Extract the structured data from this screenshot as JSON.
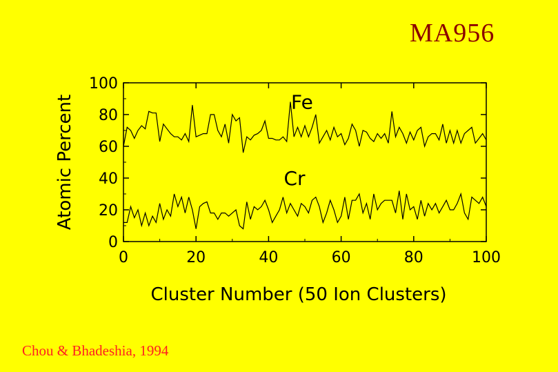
{
  "slide": {
    "course_code": "MA956",
    "credit": "Chou & Bhadeshia, 1994"
  },
  "colors": {
    "background": "#ffff00",
    "course_code": "#8b0000",
    "credit": "#ff2020",
    "lines": "#000000"
  },
  "chart_data": {
    "type": "line",
    "xlabel": "Cluster Number (50 Ion Clusters)",
    "ylabel": "Atomic Percent",
    "xlim": [
      0,
      100
    ],
    "ylim": [
      0,
      100
    ],
    "xticks": [
      0,
      20,
      40,
      60,
      80,
      100
    ],
    "yticks": [
      0,
      20,
      40,
      60,
      80,
      100
    ],
    "grid": false,
    "series": [
      {
        "name": "Fe",
        "x": [
          0,
          1,
          2,
          3,
          4,
          5,
          6,
          7,
          8,
          9,
          10,
          11,
          12,
          13,
          14,
          15,
          16,
          17,
          18,
          19,
          20,
          21,
          22,
          23,
          24,
          25,
          26,
          27,
          28,
          29,
          30,
          31,
          32,
          33,
          34,
          35,
          36,
          37,
          38,
          39,
          40,
          41,
          42,
          43,
          44,
          45,
          46,
          47,
          48,
          49,
          50,
          51,
          52,
          53,
          54,
          55,
          56,
          57,
          58,
          59,
          60,
          61,
          62,
          63,
          64,
          65,
          66,
          67,
          68,
          69,
          70,
          71,
          72,
          73,
          74,
          75,
          76,
          77,
          78,
          79,
          80,
          81,
          82,
          83,
          84,
          85,
          86,
          87,
          88,
          89,
          90,
          91,
          92,
          93,
          94,
          95,
          96,
          97,
          98,
          99,
          100
        ],
        "values": [
          60,
          72,
          70,
          65,
          70,
          73,
          71,
          82,
          81,
          81,
          63,
          74,
          71,
          68,
          66,
          66,
          64,
          68,
          63,
          86,
          66,
          67,
          68,
          68,
          80,
          80,
          70,
          66,
          74,
          62,
          80,
          76,
          78,
          56,
          66,
          64,
          67,
          68,
          70,
          76,
          65,
          65,
          64,
          64,
          66,
          63,
          88,
          66,
          72,
          66,
          73,
          66,
          72,
          80,
          62,
          66,
          70,
          64,
          72,
          66,
          68,
          61,
          65,
          74,
          70,
          60,
          70,
          69,
          65,
          63,
          68,
          65,
          68,
          62,
          82,
          66,
          72,
          68,
          62,
          69,
          64,
          70,
          72,
          60,
          66,
          68,
          68,
          64,
          74,
          62,
          70,
          62,
          70,
          62,
          68,
          70,
          72,
          62,
          65,
          68,
          64
        ],
        "points_note": ""
      },
      {
        "name": "Cr",
        "x": [
          0,
          1,
          2,
          3,
          4,
          5,
          6,
          7,
          8,
          9,
          10,
          11,
          12,
          13,
          14,
          15,
          16,
          17,
          18,
          19,
          20,
          21,
          22,
          23,
          24,
          25,
          26,
          27,
          28,
          29,
          30,
          31,
          32,
          33,
          34,
          35,
          36,
          37,
          38,
          39,
          40,
          41,
          42,
          43,
          44,
          45,
          46,
          47,
          48,
          49,
          50,
          51,
          52,
          53,
          54,
          55,
          56,
          57,
          58,
          59,
          60,
          61,
          62,
          63,
          64,
          65,
          66,
          67,
          68,
          69,
          70,
          71,
          72,
          73,
          74,
          75,
          76,
          77,
          78,
          79,
          80,
          81,
          82,
          83,
          84,
          85,
          86,
          87,
          88,
          89,
          90,
          91,
          92,
          93,
          94,
          95,
          96,
          97,
          98,
          99,
          100
        ],
        "values": [
          12,
          12,
          22,
          15,
          20,
          10,
          18,
          10,
          16,
          12,
          24,
          14,
          20,
          16,
          30,
          22,
          28,
          18,
          28,
          20,
          8,
          22,
          24,
          25,
          18,
          18,
          14,
          18,
          18,
          16,
          18,
          20,
          10,
          8,
          25,
          14,
          22,
          20,
          22,
          26,
          20,
          12,
          16,
          20,
          28,
          18,
          24,
          20,
          16,
          24,
          22,
          18,
          26,
          28,
          22,
          12,
          18,
          26,
          20,
          12,
          16,
          28,
          14,
          26,
          26,
          30,
          18,
          24,
          14,
          30,
          20,
          24,
          26,
          26,
          26,
          18,
          32,
          14,
          30,
          20,
          22,
          14,
          26,
          16,
          24,
          20,
          24,
          18,
          22,
          26,
          20,
          20,
          24,
          30,
          18,
          14,
          28,
          26,
          24,
          28,
          22
        ],
        "points_note": ""
      }
    ]
  }
}
